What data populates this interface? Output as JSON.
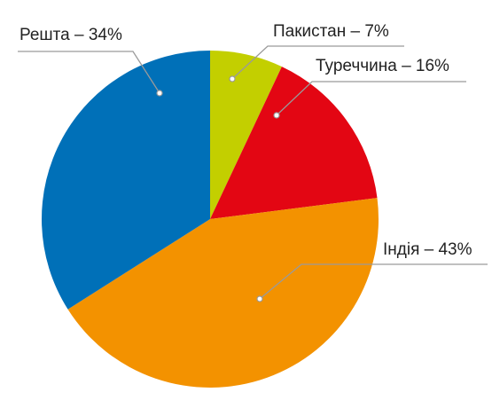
{
  "chart_data": {
    "type": "pie",
    "values": [
      7,
      16,
      43,
      34
    ],
    "value_labels": [
      "Пакистан – 7%",
      "Туреччина – 16%",
      "Індія – 43%",
      "Решта – 34%"
    ],
    "colors": [
      "#c3cf00",
      "#e30613",
      "#f39200",
      "#0070b8"
    ]
  }
}
